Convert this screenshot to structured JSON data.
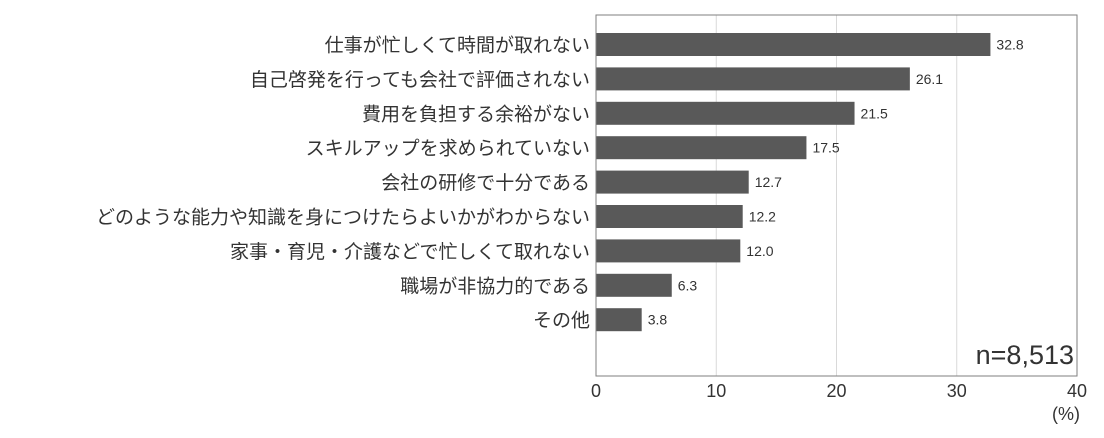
{
  "chart_data": {
    "type": "bar",
    "orientation": "horizontal",
    "categories": [
      "仕事が忙しくて時間が取れない",
      "自己啓発を行っても会社で評価されない",
      "費用を負担する余裕がない",
      "スキルアップを求められていない",
      "会社の研修で十分である",
      "どのような能力や知識を身につけたらよいかがわからない",
      "家事・育児・介護などで忙しくて取れない",
      "職場が非協力的である",
      "その他"
    ],
    "values": [
      32.8,
      26.1,
      21.5,
      17.5,
      12.7,
      12.2,
      12.0,
      6.3,
      3.8
    ],
    "value_labels": [
      "32.8",
      "26.1",
      "21.5",
      "17.5",
      "12.7",
      "12.2",
      "12.0",
      "6.3",
      "3.8"
    ],
    "x_ticks": [
      "0",
      "10",
      "20",
      "30",
      "40"
    ],
    "xlim": [
      0,
      40
    ],
    "x_unit": "(%)",
    "annotation": "n=8,513",
    "grid": "vertical",
    "bar_color": "#595959",
    "grid_color": "#d9d9d9"
  }
}
